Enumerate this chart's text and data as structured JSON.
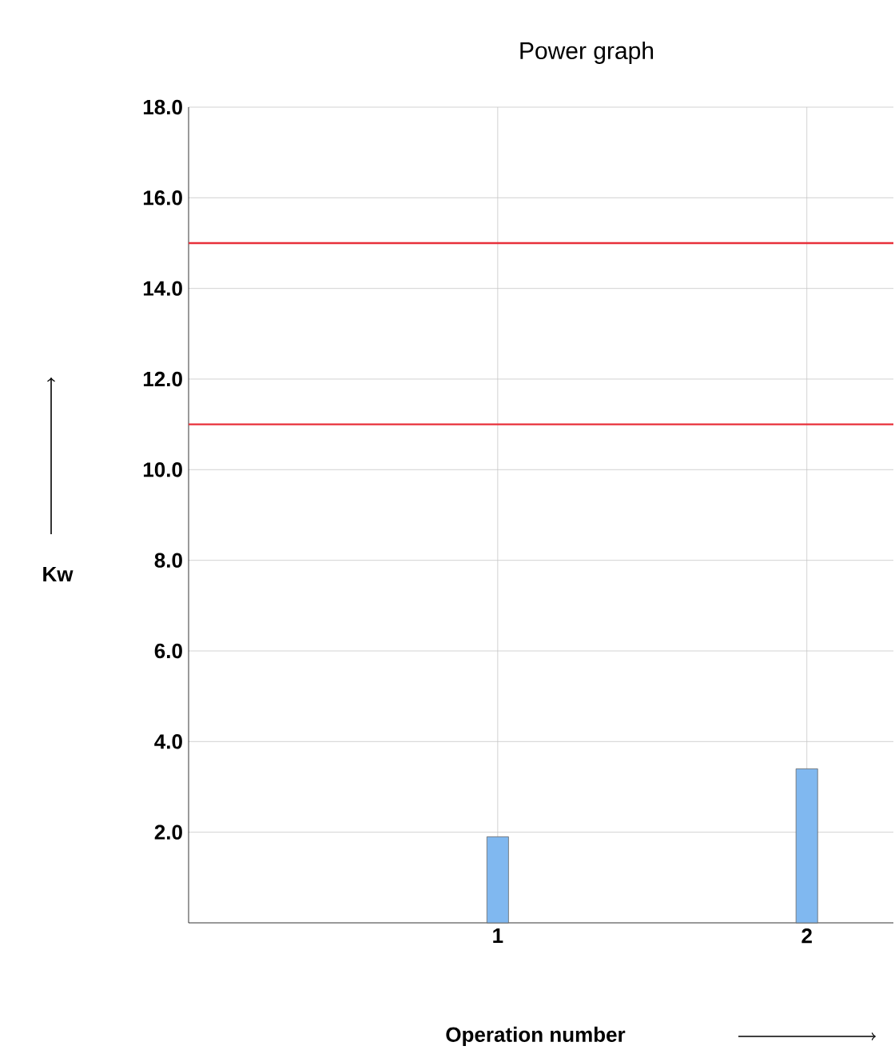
{
  "chart_data": {
    "type": "bar",
    "title": "Power graph",
    "xlabel": "Operation number",
    "ylabel": "Kw",
    "x": [
      1,
      2
    ],
    "values": [
      1.9,
      3.4
    ],
    "color": "#80b8f0",
    "xlim": [
      0,
      2.28
    ],
    "xticks": [
      1,
      2
    ],
    "ylim": [
      0,
      18
    ],
    "yticks": [
      {
        "value": 2,
        "label": "2.0"
      },
      {
        "value": 4,
        "label": "4.0"
      },
      {
        "value": 6,
        "label": "6.0"
      },
      {
        "value": 8,
        "label": "8.0"
      },
      {
        "value": 10,
        "label": "10.0"
      },
      {
        "value": 12,
        "label": "12.0"
      },
      {
        "value": 14,
        "label": "14.0"
      },
      {
        "value": 16,
        "label": "16.0"
      },
      {
        "value": 18,
        "label": "18.0"
      }
    ],
    "grid": true,
    "ref_lines": [
      {
        "axis": "y",
        "value": 15,
        "color": "#e8303a"
      },
      {
        "axis": "y",
        "value": 11,
        "color": "#e8303a"
      }
    ]
  }
}
